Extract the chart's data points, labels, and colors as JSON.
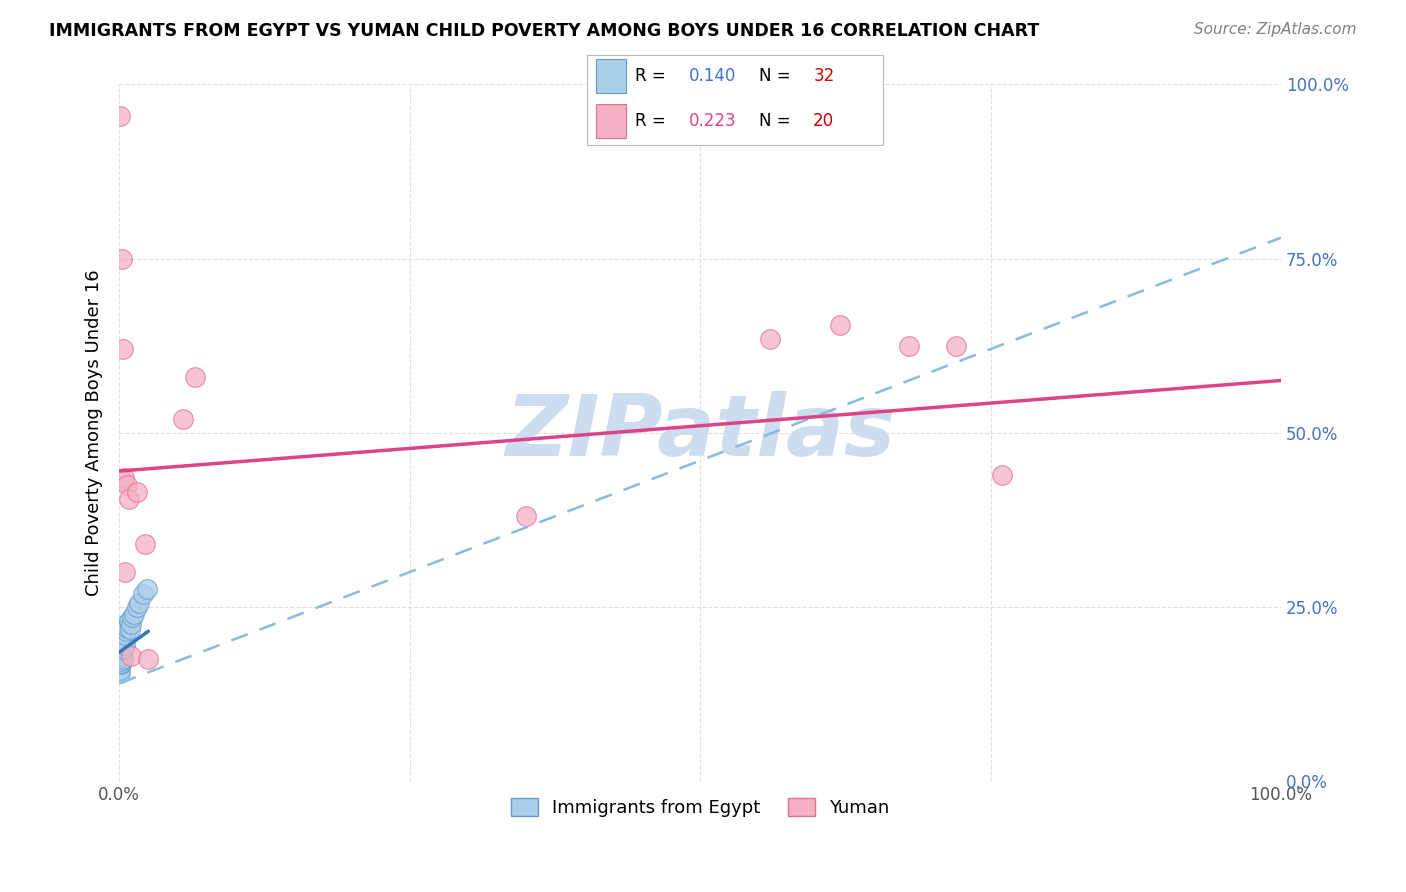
{
  "title": "IMMIGRANTS FROM EGYPT VS YUMAN CHILD POVERTY AMONG BOYS UNDER 16 CORRELATION CHART",
  "source": "Source: ZipAtlas.com",
  "ylabel": "Child Poverty Among Boys Under 16",
  "xlim": [
    0.0,
    1.0
  ],
  "ylim": [
    0.0,
    1.0
  ],
  "x_ticks": [
    0.0,
    0.25,
    0.5,
    0.75,
    1.0
  ],
  "y_ticks": [
    0.0,
    0.25,
    0.5,
    0.75,
    1.0
  ],
  "right_y_tick_labels": [
    "0.0%",
    "25.0%",
    "50.0%",
    "75.0%",
    "100.0%"
  ],
  "x_tick_labels_show": [
    "0.0%",
    "",
    "",
    "",
    "100.0%"
  ],
  "legend_r1": "0.140",
  "legend_n1": "32",
  "legend_r2": "0.223",
  "legend_n2": "20",
  "blue_fill": "#aacfeb",
  "blue_edge": "#6699cc",
  "pink_fill": "#f5b0c5",
  "pink_edge": "#e07090",
  "blue_line_color": "#3377bb",
  "pink_line_color": "#dd4488",
  "dashed_line_color": "#88bbdd",
  "right_axis_color": "#4472c4",
  "legend_r_color": "#4472c4",
  "legend_n_color": "#cc0000",
  "watermark": "ZIPatlas",
  "watermark_color": "#ccddf0",
  "egypt_x": [
    0.0005,
    0.0008,
    0.001,
    0.001,
    0.0012,
    0.0015,
    0.0018,
    0.002,
    0.002,
    0.0022,
    0.0025,
    0.003,
    0.003,
    0.0032,
    0.0035,
    0.004,
    0.004,
    0.0045,
    0.005,
    0.005,
    0.006,
    0.006,
    0.007,
    0.008,
    0.009,
    0.01,
    0.011,
    0.013,
    0.015,
    0.017,
    0.02,
    0.024
  ],
  "egypt_y": [
    0.155,
    0.16,
    0.175,
    0.185,
    0.168,
    0.17,
    0.172,
    0.178,
    0.185,
    0.18,
    0.188,
    0.175,
    0.192,
    0.195,
    0.19,
    0.198,
    0.205,
    0.2,
    0.195,
    0.21,
    0.215,
    0.225,
    0.22,
    0.23,
    0.218,
    0.225,
    0.235,
    0.24,
    0.25,
    0.255,
    0.268,
    0.275
  ],
  "yuman_x": [
    0.001,
    0.002,
    0.003,
    0.003,
    0.004,
    0.005,
    0.007,
    0.008,
    0.01,
    0.015,
    0.022,
    0.025,
    0.055,
    0.065,
    0.35,
    0.56,
    0.62,
    0.68,
    0.72,
    0.76
  ],
  "yuman_y": [
    0.955,
    0.75,
    0.62,
    0.43,
    0.435,
    0.3,
    0.425,
    0.405,
    0.18,
    0.415,
    0.34,
    0.175,
    0.52,
    0.58,
    0.38,
    0.635,
    0.655,
    0.625,
    0.625,
    0.44
  ],
  "blue_line_x0": 0.0,
  "blue_line_x1": 0.025,
  "blue_line_y0": 0.185,
  "blue_line_y1": 0.215,
  "dashed_line_x0": 0.0,
  "dashed_line_x1": 1.0,
  "dashed_line_y0": 0.14,
  "dashed_line_y1": 0.78,
  "pink_line_x0": 0.0,
  "pink_line_x1": 1.0,
  "pink_line_y0": 0.445,
  "pink_line_y1": 0.575
}
